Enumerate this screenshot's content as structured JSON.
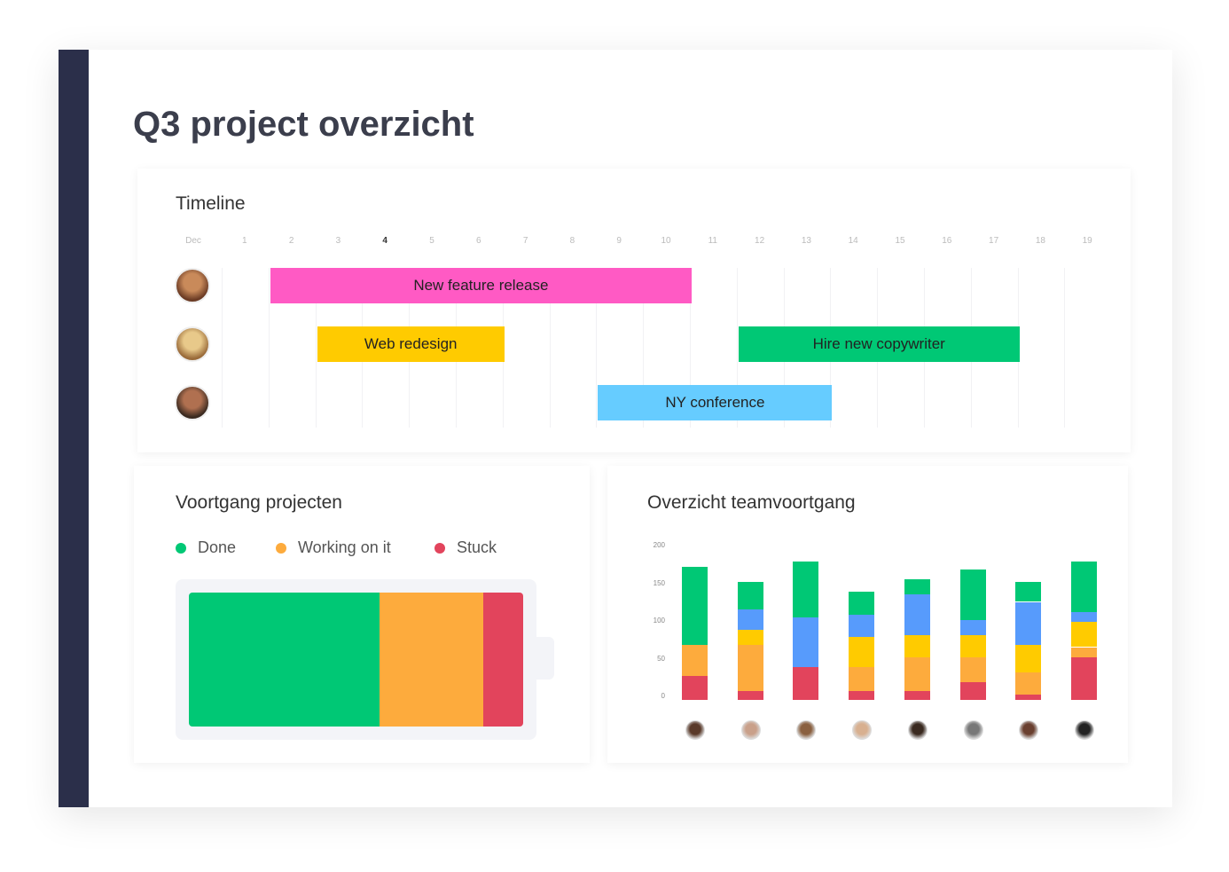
{
  "page": {
    "title": "Q3 project overzicht"
  },
  "colors": {
    "sidebar": "#2b2f4a",
    "done": "#00c875",
    "working": "#fdab3d",
    "stuck": "#e2445c",
    "pink": "#ff5ac4",
    "yellow": "#ffcb00",
    "green": "#00c875",
    "lightblue": "#66ccff",
    "blue": "#579bfc"
  },
  "timeline": {
    "title": "Timeline",
    "days": [
      "Dec",
      "1",
      "2",
      "3",
      "4",
      "5",
      "6",
      "7",
      "8",
      "9",
      "10",
      "11",
      "12",
      "13",
      "14",
      "15",
      "16",
      "17",
      "18",
      "19"
    ],
    "current_day": "4",
    "rows": [
      {
        "avatar": "avatar-woman-curly-hair",
        "items": [
          {
            "label": "New feature release",
            "start": 2,
            "end": 10,
            "color": "#ff5ac4"
          }
        ]
      },
      {
        "avatar": "avatar-woman-blonde",
        "items": [
          {
            "label": "Web redesign",
            "start": 3,
            "end": 6,
            "color": "#ffcb00"
          },
          {
            "label": "Hire new copywriter",
            "start": 12,
            "end": 17,
            "color": "#00c875"
          }
        ]
      },
      {
        "avatar": "avatar-man-beard",
        "items": [
          {
            "label": "NY conference",
            "start": 9,
            "end": 13,
            "color": "#66ccff"
          }
        ]
      }
    ]
  },
  "progress": {
    "title": "Voortgang projecten",
    "legend": [
      {
        "label": "Done",
        "color": "#00c875"
      },
      {
        "label": "Working on it",
        "color": "#fdab3d"
      },
      {
        "label": "Stuck",
        "color": "#e2445c"
      }
    ],
    "percent": {
      "done": 57,
      "working": 31,
      "stuck": 12
    }
  },
  "team": {
    "title": "Overzicht teamvoortgang",
    "chart_data": {
      "type": "bar",
      "stacked": true,
      "ylim": [
        0,
        200
      ],
      "yticks": [
        "0",
        "50",
        "100",
        "150",
        "200"
      ],
      "categories": [
        "member-1",
        "member-2",
        "member-3",
        "member-4",
        "member-5",
        "member-6",
        "member-7",
        "member-8"
      ],
      "series": [
        {
          "color": "#e2445c",
          "values": [
            32,
            12,
            43,
            12,
            12,
            23,
            7,
            56
          ]
        },
        {
          "color": "#fdab3d",
          "values": [
            41,
            61,
            0,
            31,
            44,
            33,
            30,
            14
          ]
        },
        {
          "color": "#ffcb00",
          "values": [
            0,
            20,
            0,
            40,
            30,
            30,
            36,
            33
          ]
        },
        {
          "color": "#579bfc",
          "values": [
            0,
            27,
            66,
            30,
            54,
            20,
            57,
            13
          ]
        },
        {
          "color": "#00c875",
          "values": [
            103,
            37,
            75,
            31,
            20,
            67,
            27,
            68
          ]
        }
      ]
    }
  }
}
